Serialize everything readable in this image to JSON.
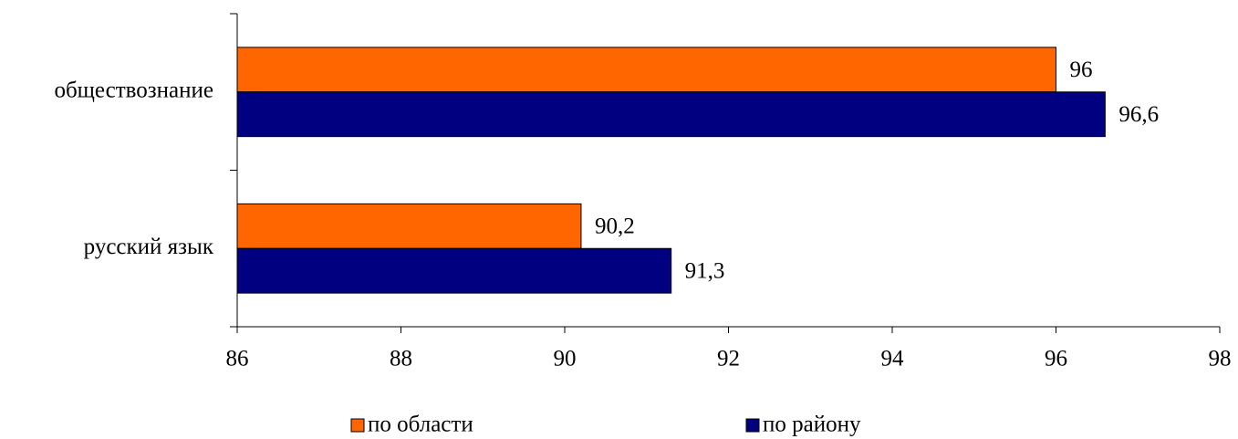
{
  "chart_data": {
    "type": "barh",
    "categories": [
      "обществознание",
      "русский язык"
    ],
    "series": [
      {
        "name": "по области",
        "color": "#FF6600",
        "values": [
          96,
          90.2
        ],
        "value_labels": [
          "96",
          "90,2"
        ]
      },
      {
        "name": "по району",
        "color": "#000080",
        "values": [
          96.6,
          91.3
        ],
        "value_labels": [
          "96,6",
          "91,3"
        ]
      }
    ],
    "xlim": [
      86,
      98
    ],
    "xticks": [
      86,
      88,
      90,
      92,
      94,
      96,
      98
    ],
    "legend": "bottom"
  }
}
